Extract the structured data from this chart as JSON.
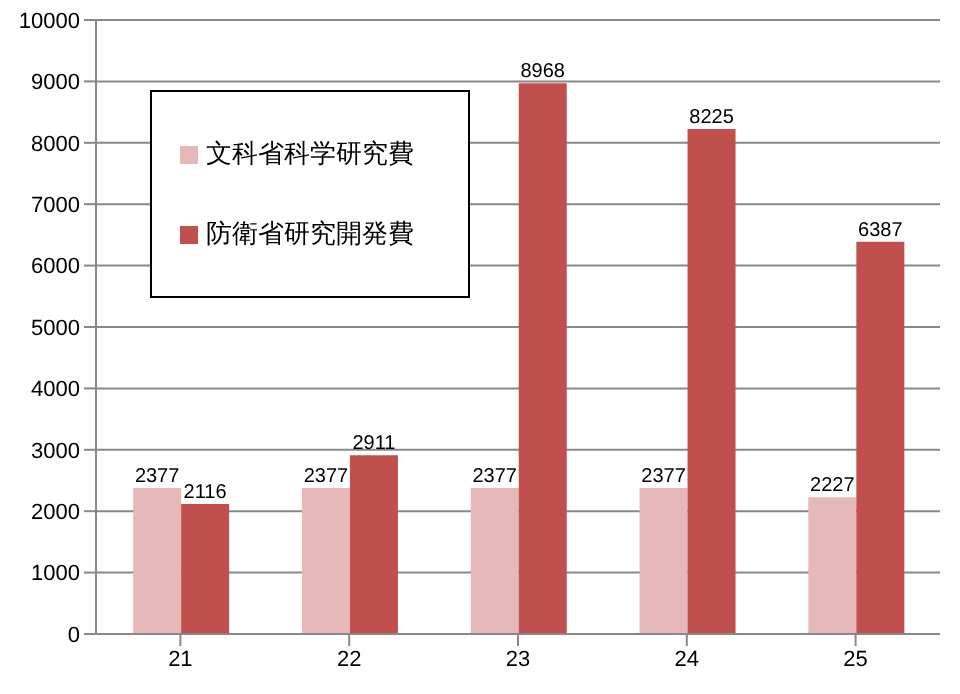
{
  "chart_data": {
    "type": "bar",
    "categories": [
      "21",
      "22",
      "23",
      "24",
      "25"
    ],
    "series": [
      {
        "name": "文科省科学研究費",
        "color": "#e6b9b8",
        "values": [
          2377,
          2377,
          2377,
          2377,
          2227
        ]
      },
      {
        "name": "防衛省研究開発費",
        "color": "#c0504d",
        "values": [
          2116,
          2911,
          8968,
          8225,
          6387
        ]
      }
    ],
    "ylim": [
      0,
      10000
    ],
    "yticks": [
      0,
      1000,
      2000,
      3000,
      4000,
      5000,
      6000,
      7000,
      8000,
      9000,
      10000
    ],
    "grid": "y",
    "legend": "top left",
    "data_labels": true
  }
}
